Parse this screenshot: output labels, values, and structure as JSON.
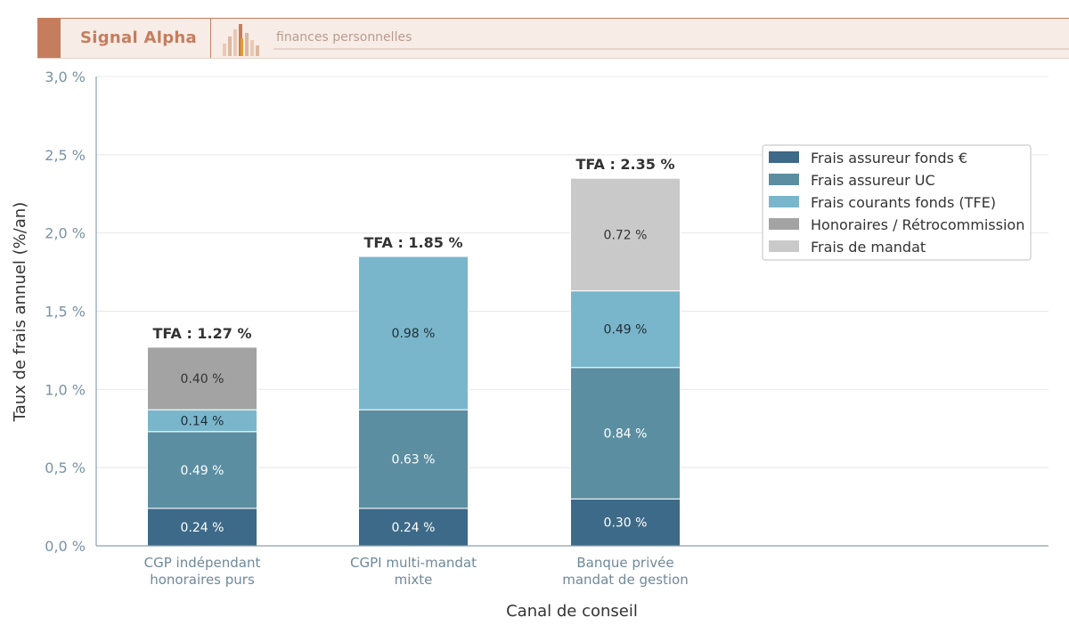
{
  "header": {
    "brand": "Signal Alpha",
    "tagline": "finances personnelles",
    "accent_color": "#c57d5e",
    "logo_icon": "bar-chart-logo-icon"
  },
  "chart_data": {
    "type": "bar",
    "stacked": true,
    "categories": [
      [
        "CGP indépendant",
        "honoraires purs"
      ],
      [
        "CGPI multi-mandat",
        "mixte"
      ],
      [
        "Banque privée",
        "mandat de gestion"
      ]
    ],
    "series": [
      {
        "name": "Frais assureur fonds €",
        "color": "#3d6a88",
        "values": [
          0.24,
          0.24,
          0.3
        ],
        "labels": [
          "0.24 %",
          "0.24 %",
          "0.30 %"
        ]
      },
      {
        "name": "Frais assureur UC",
        "color": "#5b8ea1",
        "values": [
          0.49,
          0.63,
          0.84
        ],
        "labels": [
          "0.49 %",
          "0.63 %",
          "0.84 %"
        ]
      },
      {
        "name": "Frais courants fonds (TFE)",
        "color": "#7ab6cb",
        "values": [
          0.14,
          0.98,
          0.49
        ],
        "labels": [
          "0.14 %",
          "0.98 %",
          "0.49 %"
        ]
      },
      {
        "name": "Honoraires / Rétrocommission",
        "color": "#a3a3a3",
        "values": [
          0.4,
          0,
          0
        ],
        "labels": [
          "0.40 %",
          "",
          ""
        ]
      },
      {
        "name": "Frais de mandat",
        "color": "#c9c9c9",
        "values": [
          0,
          0,
          0.72
        ],
        "labels": [
          "",
          "",
          "0.72 %"
        ]
      }
    ],
    "totals": [
      1.27,
      1.85,
      2.35
    ],
    "total_labels": [
      "TFA : 1.27 %",
      "TFA : 1.85 %",
      "TFA : 2.35 %"
    ],
    "xlabel": "Canal de conseil",
    "ylabel": "Taux de frais annuel (%/an)",
    "ylim": [
      0,
      3.0
    ],
    "yticks": [
      "0,0 %",
      "0,5 %",
      "1,0 %",
      "1,5 %",
      "2,0 %",
      "2,5 %",
      "3,0 %"
    ],
    "grid": true,
    "legend_position": "top-right"
  }
}
